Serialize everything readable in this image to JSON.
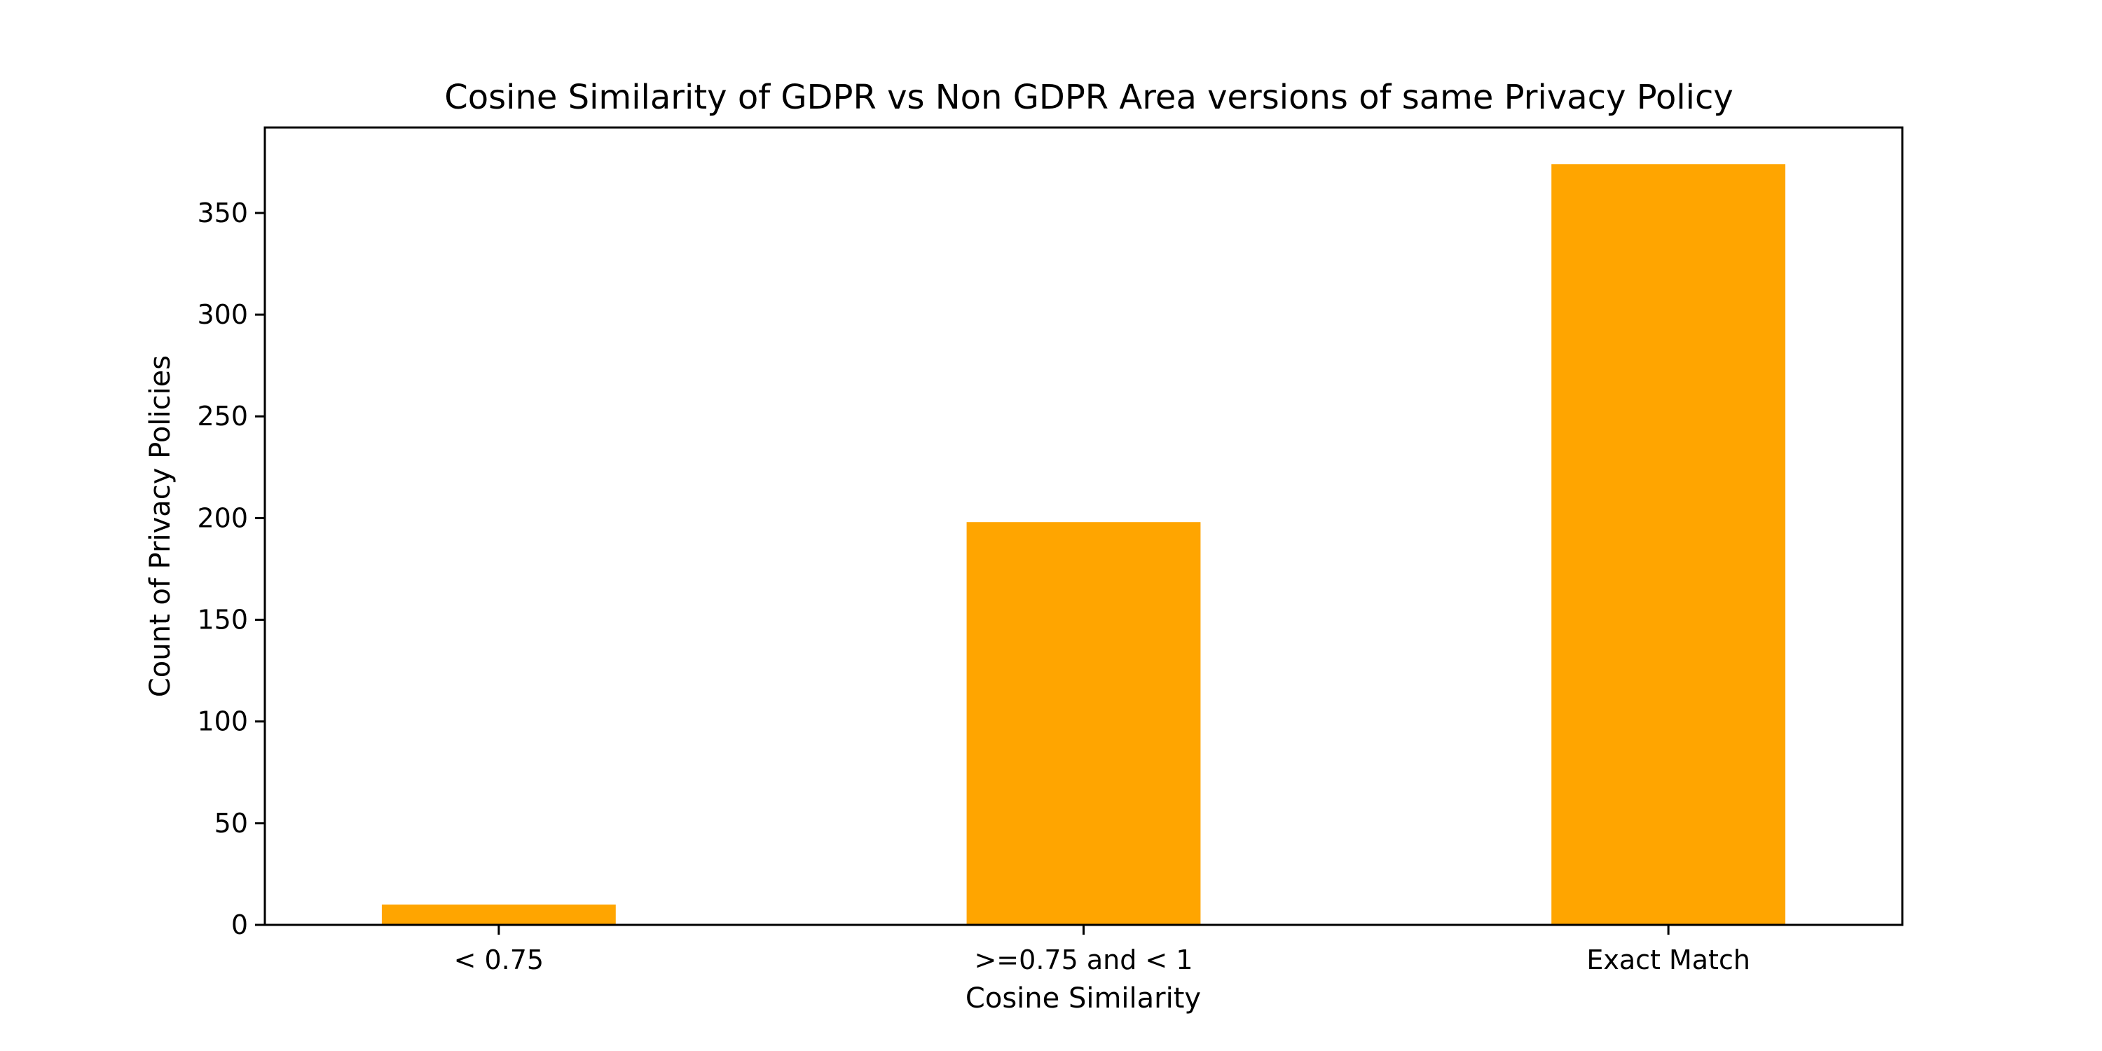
{
  "chart_data": {
    "type": "bar",
    "title": "Cosine Similarity of GDPR vs Non GDPR Area versions of same Privacy Policy",
    "xlabel": "Cosine Similarity",
    "ylabel": "Count of Privacy Policies",
    "categories": [
      "< 0.75",
      ">=0.75 and < 1",
      "Exact Match"
    ],
    "values": [
      10,
      198,
      374
    ],
    "ylim": [
      0,
      392
    ],
    "yticks": [
      0,
      50,
      100,
      150,
      200,
      250,
      300,
      350
    ],
    "bar_color": "#FFA500",
    "grid": false,
    "legend": "none"
  }
}
